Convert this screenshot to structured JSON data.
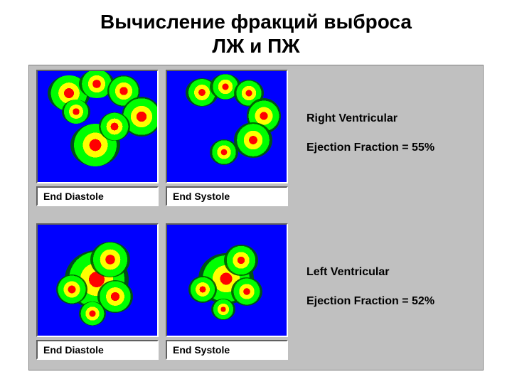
{
  "title_line1": "Вычисление фракций выброса",
  "title_line2": "ЛЖ и ПЖ",
  "panel": {
    "background_color": "#c0c0c0",
    "rows": [
      {
        "scans": [
          {
            "caption": "End Diastole"
          },
          {
            "caption": "End Systole"
          }
        ],
        "info_line1": "Right Ventricular",
        "info_line2": "Ejection Fraction = 55%"
      },
      {
        "scans": [
          {
            "caption": "End Diastole"
          },
          {
            "caption": "End Systole"
          }
        ],
        "info_line1": "Left Ventricular",
        "info_line2": "Ejection Fraction = 52%"
      }
    ]
  },
  "colors": {
    "scan_bg": "#0000ff",
    "heat_core": "#ff0000",
    "heat_mid": "#ffff00",
    "heat_outer": "#00ff00",
    "caption_bg": "#ffffff",
    "text": "#000000"
  },
  "typography": {
    "title_fontsize_pt": 21,
    "title_weight": "bold",
    "caption_fontsize_pt": 10,
    "caption_weight": "bold",
    "info_fontsize_pt": 12,
    "info_weight": "bold",
    "font_family": "Verdana, Arial, sans-serif"
  }
}
